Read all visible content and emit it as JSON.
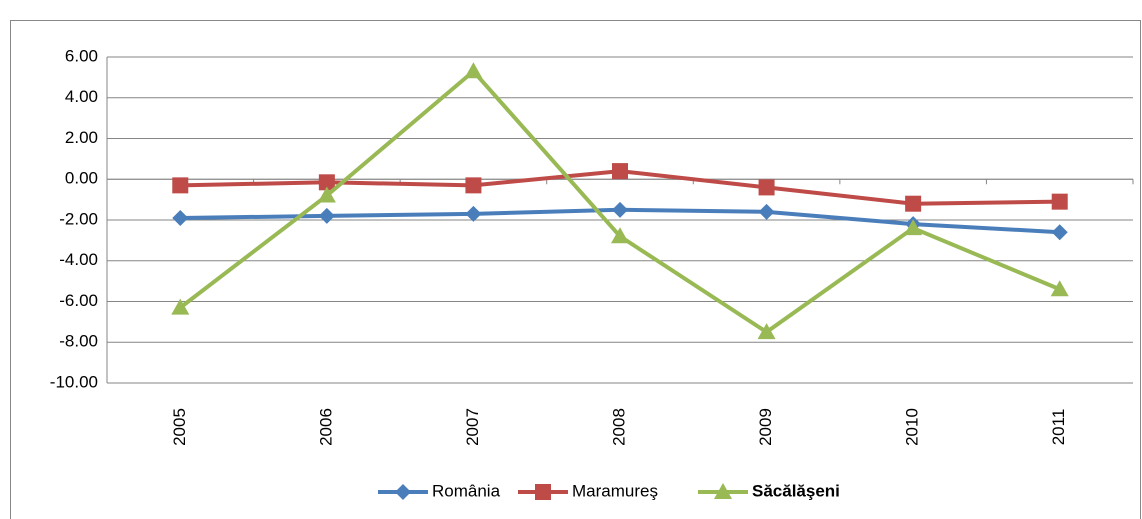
{
  "chart_data": {
    "type": "line",
    "categories": [
      "2005",
      "2006",
      "2007",
      "2008",
      "2009",
      "2010",
      "2011"
    ],
    "series": [
      {
        "name": "România",
        "color": "#4a7ebb",
        "marker": "diamond",
        "values": [
          -1.9,
          -1.8,
          -1.7,
          -1.5,
          -1.6,
          -2.2,
          -2.6
        ]
      },
      {
        "name": "Maramureş",
        "color": "#be4b48",
        "marker": "square",
        "values": [
          -0.3,
          -0.15,
          -0.3,
          0.4,
          -0.4,
          -1.2,
          -1.1
        ]
      },
      {
        "name": "Săcălăşeni",
        "color": "#98b954",
        "marker": "triangle",
        "values": [
          -6.3,
          -0.8,
          5.3,
          -2.8,
          -7.5,
          -2.4,
          -5.4
        ]
      }
    ],
    "ylim": [
      -10,
      6
    ],
    "yticks": [
      {
        "value": -10,
        "label": "-10.00"
      },
      {
        "value": -8,
        "label": "-8.00"
      },
      {
        "value": -6,
        "label": "-6.00"
      },
      {
        "value": -4,
        "label": "-4.00"
      },
      {
        "value": -2,
        "label": "-2.00"
      },
      {
        "value": 0,
        "label": "0.00"
      },
      {
        "value": 2,
        "label": "2.00"
      },
      {
        "value": 4,
        "label": "4.00"
      },
      {
        "value": 6,
        "label": "6.00"
      }
    ],
    "grid": true,
    "legend": "bottom"
  }
}
